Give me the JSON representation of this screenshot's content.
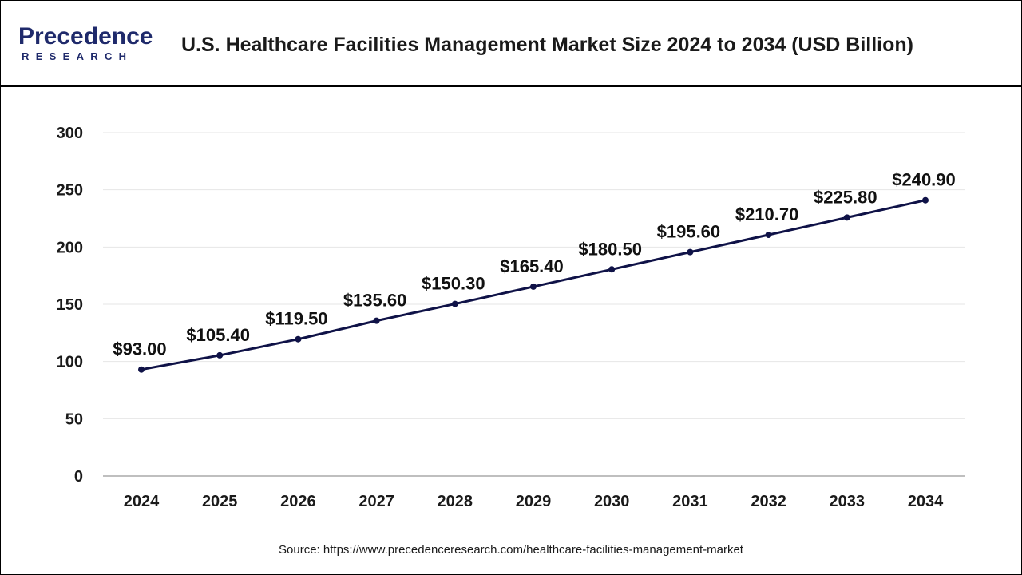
{
  "header": {
    "logo_line1": "Precedence",
    "logo_line2": "RESEARCH",
    "title": "U.S. Healthcare Facilities Management Market Size 2024 to 2034 (USD Billion)"
  },
  "source": "Source: https://www.precedenceresearch.com/healthcare-facilities-management-market",
  "colors": {
    "line": "#0f1247",
    "brand": "#1f2a6b",
    "grid": "#e6e6e6",
    "axis": "#999999"
  },
  "chart_data": {
    "type": "line",
    "categories": [
      "2024",
      "2025",
      "2026",
      "2027",
      "2028",
      "2029",
      "2030",
      "2031",
      "2032",
      "2033",
      "2034"
    ],
    "values": [
      93.0,
      105.4,
      119.5,
      135.6,
      150.3,
      165.4,
      180.5,
      195.6,
      210.7,
      225.8,
      240.9
    ],
    "data_labels": [
      "$93.00",
      "$105.40",
      "$119.50",
      "$135.60",
      "$150.30",
      "$165.40",
      "$180.50",
      "$195.60",
      "$210.70",
      "$225.80",
      "$240.90"
    ],
    "ylim": [
      0,
      300
    ],
    "yticks": [
      0,
      50,
      100,
      150,
      200,
      250,
      300
    ],
    "grid": true,
    "legend": "none"
  }
}
